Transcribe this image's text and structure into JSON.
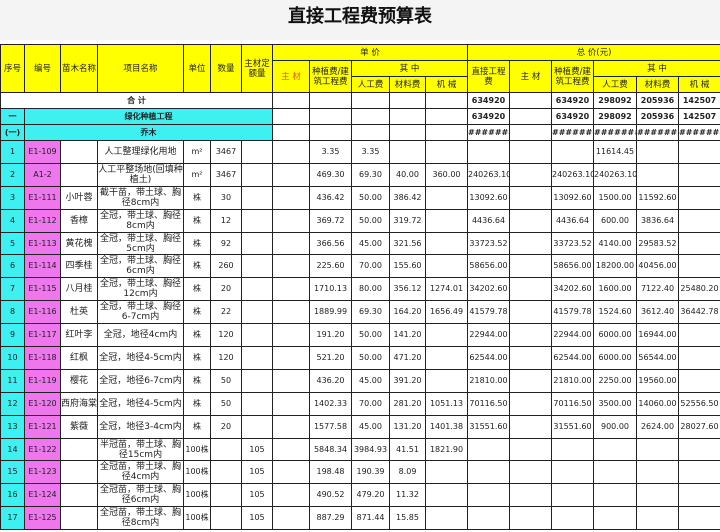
{
  "title": "直接工程费预算表",
  "headers": {
    "seq": "序号",
    "code": "编号",
    "plant": "苗木名称",
    "item": "项目名称",
    "unit": "单位",
    "qty": "数量",
    "main_quota": "主材定额量",
    "unit_price": "单  价",
    "total_price": "总  价(元)",
    "main": "主 材",
    "planting": "种植费/建筑工程费",
    "of_which": "其  中",
    "labor": "人工费",
    "material": "材料费",
    "machine": "机 械",
    "direct": "直接工程费"
  },
  "summary": {
    "label": "合    计",
    "direct": "634920",
    "planting": "634920",
    "labor": "298092",
    "material": "205936",
    "machine": "142507"
  },
  "section1": {
    "seq": "一",
    "label": "绿化种植工程",
    "direct": "634920",
    "planting": "634920",
    "labor": "298092",
    "material": "205936",
    "machine": "142507"
  },
  "section2": {
    "seq": "(一)",
    "label": "乔木",
    "direct": "########",
    "planting": "########",
    "labor": "########",
    "material": "########",
    "machine": "########"
  },
  "rows": [
    [
      "1",
      "E1-109",
      "",
      "人工整理绿化用地",
      "m²",
      "3467",
      "",
      "",
      "3.35",
      "3.35",
      "",
      "",
      "",
      "",
      "",
      "11614.45",
      "",
      ""
    ],
    [
      "2",
      "A1-2",
      "",
      "人工平整场地(回填种植土)",
      "m²",
      "3467",
      "",
      "",
      "469.30",
      "69.30",
      "40.00",
      "360.00",
      "240263.10",
      "",
      "240263.10",
      "240263.10",
      "",
      ""
    ],
    [
      "3",
      "E1-111",
      "小叶蓉",
      "截干苗，带土球、胸径8cm内",
      "株",
      "30",
      "",
      "",
      "436.42",
      "50.00",
      "386.42",
      "",
      "13092.60",
      "",
      "13092.60",
      "1500.00",
      "11592.60",
      ""
    ],
    [
      "4",
      "E1-112",
      "香樟",
      "全冠，带土球、胸径8cm内",
      "株",
      "12",
      "",
      "",
      "369.72",
      "50.00",
      "319.72",
      "",
      "4436.64",
      "",
      "4436.64",
      "600.00",
      "3836.64",
      ""
    ],
    [
      "5",
      "E1-113",
      "黄花槐",
      "全冠，带土球、胸径5cm内",
      "株",
      "92",
      "",
      "",
      "366.56",
      "45.00",
      "321.56",
      "",
      "33723.52",
      "",
      "33723.52",
      "4140.00",
      "29583.52",
      ""
    ],
    [
      "6",
      "E1-114",
      "四季桂",
      "全冠，带土球、胸径6cm内",
      "株",
      "260",
      "",
      "",
      "225.60",
      "70.00",
      "155.60",
      "",
      "58656.00",
      "",
      "58656.00",
      "18200.00",
      "40456.00",
      ""
    ],
    [
      "7",
      "E1-115",
      "八月桂",
      "全冠，带土球、胸径12cm内",
      "株",
      "20",
      "",
      "",
      "1710.13",
      "80.00",
      "356.12",
      "1274.01",
      "34202.60",
      "",
      "34202.60",
      "1600.00",
      "7122.40",
      "25480.20"
    ],
    [
      "8",
      "E1-116",
      "杜英",
      "全冠，带土球、胸径6-7cm内",
      "株",
      "22",
      "",
      "",
      "1889.99",
      "69.30",
      "164.20",
      "1656.49",
      "41579.78",
      "",
      "41579.78",
      "1524.60",
      "3612.40",
      "36442.78"
    ],
    [
      "9",
      "E1-117",
      "红叶李",
      "全冠，地径4cm内",
      "株",
      "120",
      "",
      "",
      "191.20",
      "50.00",
      "141.20",
      "",
      "22944.00",
      "",
      "22944.00",
      "6000.00",
      "16944.00",
      ""
    ],
    [
      "10",
      "E1-118",
      "红枫",
      "全冠，地径4-5cm内",
      "株",
      "120",
      "",
      "",
      "521.20",
      "50.00",
      "471.20",
      "",
      "62544.00",
      "",
      "62544.00",
      "6000.00",
      "56544.00",
      ""
    ],
    [
      "11",
      "E1-119",
      "樱花",
      "全冠，地径6-7cm内",
      "株",
      "50",
      "",
      "",
      "436.20",
      "45.00",
      "391.20",
      "",
      "21810.00",
      "",
      "21810.00",
      "2250.00",
      "19560.00",
      ""
    ],
    [
      "12",
      "E1-120",
      "西府海棠",
      "全冠，地径4-5cm内",
      "株",
      "50",
      "",
      "",
      "1402.33",
      "70.00",
      "281.20",
      "1051.13",
      "70116.50",
      "",
      "70116.50",
      "3500.00",
      "14060.00",
      "52556.50"
    ],
    [
      "13",
      "E1-121",
      "紫薇",
      "全冠，地径3-4cm内",
      "株",
      "20",
      "",
      "",
      "1577.58",
      "45.00",
      "131.20",
      "1401.38",
      "31551.60",
      "",
      "31551.60",
      "900.00",
      "2624.00",
      "28027.60"
    ],
    [
      "14",
      "E1-122",
      "",
      "半冠苗，带土球、胸径15cm内",
      "100株",
      "",
      "105",
      "",
      "5848.34",
      "3984.93",
      "41.51",
      "1821.90",
      "",
      "",
      "",
      "",
      "",
      ""
    ],
    [
      "15",
      "E1-123",
      "",
      "全冠苗，带土球、胸径4cm内",
      "100株",
      "",
      "105",
      "",
      "198.48",
      "190.39",
      "8.09",
      "",
      "",
      "",
      "",
      "",
      "",
      ""
    ],
    [
      "16",
      "E1-124",
      "",
      "全冠苗，带土球、胸径6cm内",
      "100株",
      "",
      "105",
      "",
      "490.52",
      "479.20",
      "11.32",
      "",
      "",
      "",
      "",
      "",
      "",
      ""
    ],
    [
      "17",
      "E1-125",
      "",
      "全冠苗，带土球、胸径8cm内",
      "100株",
      "",
      "105",
      "",
      "887.29",
      "871.44",
      "15.85",
      "",
      "",
      "",
      "",
      "",
      "",
      ""
    ]
  ],
  "colors": {
    "header": "#ffff00",
    "seq": "#3ff0f0",
    "code": "#ee77ee"
  }
}
